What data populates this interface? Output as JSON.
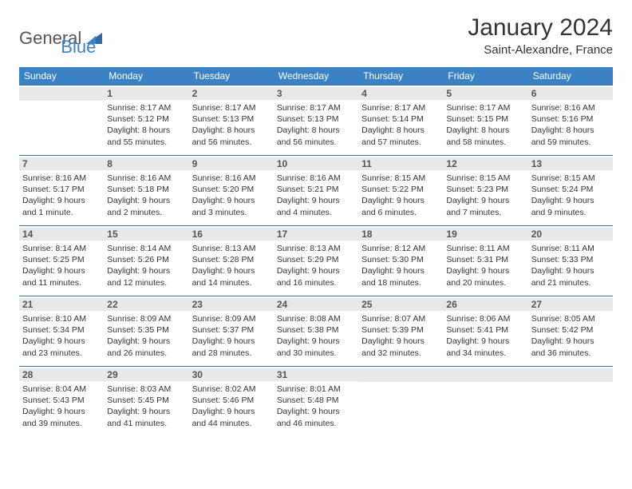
{
  "logo": {
    "part1": "General",
    "part2": "Blue"
  },
  "title": "January 2024",
  "location": "Saint-Alexandre, France",
  "colors": {
    "header_bg": "#3b82c4",
    "header_text": "#ffffff",
    "daynum_bg": "#e8e8e8",
    "row_border": "#3b72a0",
    "text": "#333333"
  },
  "weekdays": [
    "Sunday",
    "Monday",
    "Tuesday",
    "Wednesday",
    "Thursday",
    "Friday",
    "Saturday"
  ],
  "weeks": [
    [
      {
        "day": "",
        "lines": []
      },
      {
        "day": "1",
        "lines": [
          "Sunrise: 8:17 AM",
          "Sunset: 5:12 PM",
          "Daylight: 8 hours",
          "and 55 minutes."
        ]
      },
      {
        "day": "2",
        "lines": [
          "Sunrise: 8:17 AM",
          "Sunset: 5:13 PM",
          "Daylight: 8 hours",
          "and 56 minutes."
        ]
      },
      {
        "day": "3",
        "lines": [
          "Sunrise: 8:17 AM",
          "Sunset: 5:13 PM",
          "Daylight: 8 hours",
          "and 56 minutes."
        ]
      },
      {
        "day": "4",
        "lines": [
          "Sunrise: 8:17 AM",
          "Sunset: 5:14 PM",
          "Daylight: 8 hours",
          "and 57 minutes."
        ]
      },
      {
        "day": "5",
        "lines": [
          "Sunrise: 8:17 AM",
          "Sunset: 5:15 PM",
          "Daylight: 8 hours",
          "and 58 minutes."
        ]
      },
      {
        "day": "6",
        "lines": [
          "Sunrise: 8:16 AM",
          "Sunset: 5:16 PM",
          "Daylight: 8 hours",
          "and 59 minutes."
        ]
      }
    ],
    [
      {
        "day": "7",
        "lines": [
          "Sunrise: 8:16 AM",
          "Sunset: 5:17 PM",
          "Daylight: 9 hours",
          "and 1 minute."
        ]
      },
      {
        "day": "8",
        "lines": [
          "Sunrise: 8:16 AM",
          "Sunset: 5:18 PM",
          "Daylight: 9 hours",
          "and 2 minutes."
        ]
      },
      {
        "day": "9",
        "lines": [
          "Sunrise: 8:16 AM",
          "Sunset: 5:20 PM",
          "Daylight: 9 hours",
          "and 3 minutes."
        ]
      },
      {
        "day": "10",
        "lines": [
          "Sunrise: 8:16 AM",
          "Sunset: 5:21 PM",
          "Daylight: 9 hours",
          "and 4 minutes."
        ]
      },
      {
        "day": "11",
        "lines": [
          "Sunrise: 8:15 AM",
          "Sunset: 5:22 PM",
          "Daylight: 9 hours",
          "and 6 minutes."
        ]
      },
      {
        "day": "12",
        "lines": [
          "Sunrise: 8:15 AM",
          "Sunset: 5:23 PM",
          "Daylight: 9 hours",
          "and 7 minutes."
        ]
      },
      {
        "day": "13",
        "lines": [
          "Sunrise: 8:15 AM",
          "Sunset: 5:24 PM",
          "Daylight: 9 hours",
          "and 9 minutes."
        ]
      }
    ],
    [
      {
        "day": "14",
        "lines": [
          "Sunrise: 8:14 AM",
          "Sunset: 5:25 PM",
          "Daylight: 9 hours",
          "and 11 minutes."
        ]
      },
      {
        "day": "15",
        "lines": [
          "Sunrise: 8:14 AM",
          "Sunset: 5:26 PM",
          "Daylight: 9 hours",
          "and 12 minutes."
        ]
      },
      {
        "day": "16",
        "lines": [
          "Sunrise: 8:13 AM",
          "Sunset: 5:28 PM",
          "Daylight: 9 hours",
          "and 14 minutes."
        ]
      },
      {
        "day": "17",
        "lines": [
          "Sunrise: 8:13 AM",
          "Sunset: 5:29 PM",
          "Daylight: 9 hours",
          "and 16 minutes."
        ]
      },
      {
        "day": "18",
        "lines": [
          "Sunrise: 8:12 AM",
          "Sunset: 5:30 PM",
          "Daylight: 9 hours",
          "and 18 minutes."
        ]
      },
      {
        "day": "19",
        "lines": [
          "Sunrise: 8:11 AM",
          "Sunset: 5:31 PM",
          "Daylight: 9 hours",
          "and 20 minutes."
        ]
      },
      {
        "day": "20",
        "lines": [
          "Sunrise: 8:11 AM",
          "Sunset: 5:33 PM",
          "Daylight: 9 hours",
          "and 21 minutes."
        ]
      }
    ],
    [
      {
        "day": "21",
        "lines": [
          "Sunrise: 8:10 AM",
          "Sunset: 5:34 PM",
          "Daylight: 9 hours",
          "and 23 minutes."
        ]
      },
      {
        "day": "22",
        "lines": [
          "Sunrise: 8:09 AM",
          "Sunset: 5:35 PM",
          "Daylight: 9 hours",
          "and 26 minutes."
        ]
      },
      {
        "day": "23",
        "lines": [
          "Sunrise: 8:09 AM",
          "Sunset: 5:37 PM",
          "Daylight: 9 hours",
          "and 28 minutes."
        ]
      },
      {
        "day": "24",
        "lines": [
          "Sunrise: 8:08 AM",
          "Sunset: 5:38 PM",
          "Daylight: 9 hours",
          "and 30 minutes."
        ]
      },
      {
        "day": "25",
        "lines": [
          "Sunrise: 8:07 AM",
          "Sunset: 5:39 PM",
          "Daylight: 9 hours",
          "and 32 minutes."
        ]
      },
      {
        "day": "26",
        "lines": [
          "Sunrise: 8:06 AM",
          "Sunset: 5:41 PM",
          "Daylight: 9 hours",
          "and 34 minutes."
        ]
      },
      {
        "day": "27",
        "lines": [
          "Sunrise: 8:05 AM",
          "Sunset: 5:42 PM",
          "Daylight: 9 hours",
          "and 36 minutes."
        ]
      }
    ],
    [
      {
        "day": "28",
        "lines": [
          "Sunrise: 8:04 AM",
          "Sunset: 5:43 PM",
          "Daylight: 9 hours",
          "and 39 minutes."
        ]
      },
      {
        "day": "29",
        "lines": [
          "Sunrise: 8:03 AM",
          "Sunset: 5:45 PM",
          "Daylight: 9 hours",
          "and 41 minutes."
        ]
      },
      {
        "day": "30",
        "lines": [
          "Sunrise: 8:02 AM",
          "Sunset: 5:46 PM",
          "Daylight: 9 hours",
          "and 44 minutes."
        ]
      },
      {
        "day": "31",
        "lines": [
          "Sunrise: 8:01 AM",
          "Sunset: 5:48 PM",
          "Daylight: 9 hours",
          "and 46 minutes."
        ]
      },
      {
        "day": "",
        "lines": []
      },
      {
        "day": "",
        "lines": []
      },
      {
        "day": "",
        "lines": []
      }
    ]
  ]
}
